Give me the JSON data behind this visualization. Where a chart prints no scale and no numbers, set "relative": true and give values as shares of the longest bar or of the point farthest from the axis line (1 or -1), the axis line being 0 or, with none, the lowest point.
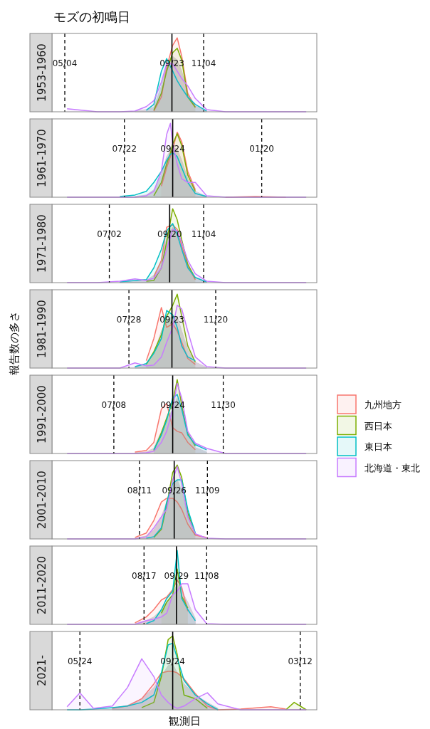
{
  "chart_data": [
    {
      "type": "area",
      "title": "モズの初鳴日",
      "subtitle": "1953-1960",
      "relative": true,
      "xlim": [
        "2000-04-17",
        "2001-04-03"
      ],
      "xticks": [
        {
          "value": "2000-05-04",
          "label": "05/04"
        },
        {
          "value": "2000-09-23",
          "label": "09/23"
        },
        {
          "value": "2000-11-04",
          "label": "11/04"
        }
      ],
      "x": [
        "2000-05-07",
        "2000-06-16",
        "2000-07-16",
        "2000-08-05",
        "2000-08-20",
        "2000-08-30",
        "2000-09-09",
        "2000-09-16",
        "2000-09-24",
        "2000-09-30",
        "2000-10-06",
        "2000-10-14",
        "2000-10-24",
        "2000-11-08",
        "2000-12-03",
        "2001-01-12",
        "2001-02-21",
        "2001-03-20"
      ],
      "series": [
        {
          "color": "#d4d4d4",
          "values": [
            null,
            null,
            null,
            0.01,
            0.03,
            0.06,
            0.35,
            0.65,
            0.75,
            0.7,
            0.55,
            0.25,
            0.08,
            0.01,
            null,
            null,
            null,
            null
          ]
        },
        {
          "color": "#f8766d",
          "values": [
            null,
            null,
            null,
            null,
            null,
            0.01,
            0.2,
            0.6,
            0.9,
            1.0,
            0.75,
            0.25,
            0.06,
            null,
            null,
            null,
            null,
            null
          ]
        },
        {
          "color": "#7cae00",
          "values": [
            null,
            null,
            null,
            null,
            null,
            0.02,
            0.25,
            0.55,
            0.8,
            0.86,
            0.7,
            0.2,
            0.06,
            null,
            null,
            null,
            null,
            null
          ]
        },
        {
          "color": "#00bfc4",
          "values": [
            null,
            null,
            null,
            null,
            0.02,
            0.1,
            0.55,
            0.72,
            0.55,
            0.42,
            0.32,
            0.2,
            0.1,
            0.01,
            null,
            null,
            null,
            null
          ]
        },
        {
          "color": "#c77cff",
          "values": [
            0.04,
            0,
            0,
            0.01,
            0.07,
            0.15,
            0.4,
            0.65,
            0.65,
            0.55,
            0.45,
            0.35,
            0.18,
            0.03,
            0,
            0,
            0,
            0
          ]
        }
      ],
      "ref_lines": [
        {
          "axis": "x",
          "value": "2000-05-04",
          "line_style": "dashed"
        },
        {
          "axis": "x",
          "value": "2000-09-23",
          "line_style": "solid"
        },
        {
          "axis": "x",
          "value": "2000-11-04",
          "line_style": "dashed"
        }
      ]
    },
    {
      "type": "area",
      "subtitle": "1961-1970",
      "relative": true,
      "xlim": [
        "2000-04-17",
        "2001-04-03"
      ],
      "xticks": [
        {
          "value": "2000-07-22",
          "label": "07/22"
        },
        {
          "value": "2000-09-24",
          "label": "09/24"
        },
        {
          "value": "2001-01-20",
          "label": "01/20"
        }
      ],
      "x": [
        "2000-05-07",
        "2000-06-16",
        "2000-07-16",
        "2000-08-05",
        "2000-08-20",
        "2000-08-30",
        "2000-09-09",
        "2000-09-16",
        "2000-09-21",
        "2000-09-24",
        "2000-09-30",
        "2000-10-06",
        "2000-10-14",
        "2000-10-24",
        "2000-11-08",
        "2000-12-03",
        "2001-01-12",
        "2001-02-21",
        "2001-03-20"
      ],
      "series": [
        {
          "color": "#d4d4d4",
          "values": [
            null,
            null,
            null,
            0.01,
            0.03,
            0.1,
            0.3,
            0.55,
            0.63,
            0.68,
            0.65,
            0.5,
            0.25,
            0.08,
            0.01,
            null,
            null,
            null,
            null
          ]
        },
        {
          "color": "#f8766d",
          "values": [
            null,
            null,
            null,
            null,
            null,
            null,
            0.15,
            0.4,
            0.55,
            0.65,
            0.88,
            0.75,
            0.35,
            0.1,
            null,
            0,
            0.01,
            0,
            null
          ]
        },
        {
          "color": "#7cae00",
          "values": [
            null,
            null,
            null,
            null,
            null,
            0.02,
            0.2,
            0.45,
            0.6,
            0.72,
            0.86,
            0.7,
            0.3,
            0.08,
            null,
            null,
            null,
            null,
            null
          ]
        },
        {
          "color": "#00bfc4",
          "values": [
            null,
            null,
            0.01,
            0.03,
            0.08,
            0.2,
            0.35,
            0.5,
            0.58,
            0.6,
            0.55,
            0.4,
            0.2,
            0.05,
            0.01,
            null,
            null,
            null,
            null
          ]
        },
        {
          "color": "#c77cff",
          "values": [
            0,
            0,
            0,
            0,
            0.02,
            0.08,
            0.35,
            0.85,
            1.0,
            0.72,
            0.45,
            0.25,
            0.2,
            0.2,
            0.02,
            0,
            0,
            0,
            0
          ]
        }
      ],
      "ref_lines": [
        {
          "axis": "x",
          "value": "2000-07-22",
          "line_style": "dashed"
        },
        {
          "axis": "x",
          "value": "2000-09-24",
          "line_style": "solid"
        },
        {
          "axis": "x",
          "value": "2001-01-20",
          "line_style": "dashed"
        }
      ]
    },
    {
      "type": "area",
      "subtitle": "1971-1980",
      "relative": true,
      "xlim": [
        "2000-04-17",
        "2001-04-03"
      ],
      "xticks": [
        {
          "value": "2000-07-02",
          "label": "07/02"
        },
        {
          "value": "2000-09-20",
          "label": "09/20"
        },
        {
          "value": "2000-11-04",
          "label": "11/04"
        }
      ],
      "x": [
        "2000-05-07",
        "2000-06-16",
        "2000-07-16",
        "2000-08-05",
        "2000-08-20",
        "2000-08-30",
        "2000-09-09",
        "2000-09-16",
        "2000-09-24",
        "2000-09-30",
        "2000-10-06",
        "2000-10-14",
        "2000-10-24",
        "2000-11-08",
        "2000-12-03",
        "2001-01-12",
        "2001-02-21",
        "2001-03-20"
      ],
      "series": [
        {
          "color": "#d4d4d4",
          "values": [
            null,
            null,
            0.01,
            0.02,
            0.03,
            0.1,
            0.3,
            0.6,
            0.75,
            0.7,
            0.5,
            0.22,
            0.07,
            0.01,
            null,
            null,
            null,
            null
          ]
        },
        {
          "color": "#f8766d",
          "values": [
            null,
            null,
            null,
            null,
            null,
            0.08,
            0.3,
            0.75,
            0.78,
            0.72,
            0.5,
            0.22,
            0.04,
            null,
            null,
            null,
            null,
            null
          ]
        },
        {
          "color": "#7cae00",
          "values": [
            null,
            null,
            null,
            null,
            0.02,
            0.03,
            0.2,
            0.55,
            1.0,
            0.85,
            0.58,
            0.25,
            0.06,
            null,
            null,
            null,
            null,
            null
          ]
        },
        {
          "color": "#00bfc4",
          "values": [
            null,
            null,
            0.01,
            0.03,
            0.04,
            0.2,
            0.45,
            0.7,
            0.8,
            0.65,
            0.45,
            0.2,
            0.07,
            0.01,
            null,
            null,
            null,
            null
          ]
        },
        {
          "color": "#c77cff",
          "values": [
            0,
            0,
            0.02,
            0.05,
            0.03,
            0.06,
            0.2,
            0.45,
            0.72,
            0.7,
            0.55,
            0.3,
            0.12,
            0.02,
            0,
            0,
            0,
            0
          ]
        }
      ],
      "ref_lines": [
        {
          "axis": "x",
          "value": "2000-07-02",
          "line_style": "dashed"
        },
        {
          "axis": "x",
          "value": "2000-09-20",
          "line_style": "solid"
        },
        {
          "axis": "x",
          "value": "2000-11-04",
          "line_style": "dashed"
        }
      ]
    },
    {
      "type": "area",
      "subtitle": "1981-1990",
      "ylabel": "報告数の多さ",
      "relative": true,
      "xlim": [
        "2000-04-17",
        "2001-04-03"
      ],
      "xticks": [
        {
          "value": "2000-07-28",
          "label": "07/28"
        },
        {
          "value": "2000-09-23",
          "label": "09/23"
        },
        {
          "value": "2000-11-20",
          "label": "11/20"
        }
      ],
      "x": [
        "2000-05-07",
        "2000-06-16",
        "2000-07-16",
        "2000-08-05",
        "2000-08-20",
        "2000-08-30",
        "2000-09-09",
        "2000-09-16",
        "2000-09-24",
        "2000-09-30",
        "2000-10-06",
        "2000-10-14",
        "2000-10-24",
        "2000-11-08",
        "2000-12-03",
        "2001-01-12",
        "2001-02-21",
        "2001-03-20"
      ],
      "series": [
        {
          "color": "#d4d4d4",
          "values": [
            null,
            null,
            null,
            0.02,
            0.06,
            0.2,
            0.5,
            0.65,
            0.7,
            0.7,
            0.5,
            0.25,
            0.08,
            0.01,
            null,
            null,
            null,
            null
          ]
        },
        {
          "color": "#f8766d",
          "values": [
            null,
            null,
            null,
            null,
            0.1,
            0.4,
            0.82,
            0.55,
            0.6,
            0.5,
            0.35,
            0.13,
            0.05,
            null,
            null,
            null,
            null,
            null
          ]
        },
        {
          "color": "#7cae00",
          "values": [
            null,
            null,
            null,
            null,
            0.05,
            0.22,
            0.45,
            0.7,
            0.85,
            1.0,
            0.7,
            0.3,
            0.08,
            null,
            null,
            null,
            null,
            null
          ]
        },
        {
          "color": "#00bfc4",
          "values": [
            null,
            null,
            null,
            0.02,
            0.06,
            0.2,
            0.4,
            0.78,
            0.72,
            0.55,
            0.3,
            0.15,
            0.1,
            null,
            null,
            null,
            null,
            null
          ]
        },
        {
          "color": "#c77cff",
          "values": [
            0,
            0,
            0,
            0.07,
            0.03,
            0.04,
            0.15,
            0.35,
            0.55,
            0.85,
            0.8,
            0.5,
            0.15,
            0.02,
            0,
            0,
            0,
            0
          ]
        }
      ],
      "ref_lines": [
        {
          "axis": "x",
          "value": "2000-07-28",
          "line_style": "dashed"
        },
        {
          "axis": "x",
          "value": "2000-09-23",
          "line_style": "solid"
        },
        {
          "axis": "x",
          "value": "2000-11-20",
          "line_style": "dashed"
        }
      ]
    },
    {
      "type": "area",
      "subtitle": "1991-2000",
      "relative": true,
      "legend": "right",
      "xlim": [
        "2000-04-17",
        "2001-04-03"
      ],
      "xticks": [
        {
          "value": "2000-07-08",
          "label": "07/08"
        },
        {
          "value": "2000-09-24",
          "label": "09/24"
        },
        {
          "value": "2000-11-30",
          "label": "11/30"
        }
      ],
      "x": [
        "2000-05-07",
        "2000-06-16",
        "2000-07-16",
        "2000-08-05",
        "2000-08-20",
        "2000-08-30",
        "2000-09-09",
        "2000-09-16",
        "2000-09-24",
        "2000-09-30",
        "2000-10-06",
        "2000-10-14",
        "2000-10-24",
        "2000-11-08",
        "2000-12-03",
        "2001-01-12",
        "2001-02-21",
        "2001-03-20"
      ],
      "series": [
        {
          "color": "#d4d4d4",
          "values": [
            null,
            null,
            null,
            0.01,
            0.02,
            0.07,
            0.3,
            0.45,
            0.6,
            0.75,
            0.6,
            0.25,
            0.08,
            0.02,
            null,
            null,
            null,
            null
          ]
        },
        {
          "name": "九州地方",
          "color": "#f8766d",
          "values": [
            null,
            null,
            null,
            0.02,
            0.04,
            0.15,
            0.6,
            0.68,
            0.35,
            0.3,
            0.28,
            0.15,
            0.05,
            null,
            null,
            null,
            null,
            null
          ]
        },
        {
          "name": "西日本",
          "color": "#7cae00",
          "values": [
            null,
            null,
            null,
            null,
            null,
            0.04,
            0.28,
            0.48,
            0.7,
            1.0,
            0.65,
            0.27,
            0.1,
            null,
            null,
            null,
            null,
            null
          ]
        },
        {
          "name": "東日本",
          "color": "#00bfc4",
          "values": [
            null,
            null,
            null,
            null,
            null,
            0.05,
            0.25,
            0.45,
            0.75,
            0.8,
            0.6,
            0.25,
            0.12,
            0.05,
            null,
            null,
            null,
            null
          ]
        },
        {
          "name": "北海道・東北",
          "color": "#c77cff",
          "values": [
            0,
            0,
            0,
            0,
            0.01,
            0.03,
            0.15,
            0.3,
            0.6,
            0.95,
            0.75,
            0.3,
            0.14,
            0.07,
            0,
            0,
            0,
            0
          ]
        }
      ],
      "ref_lines": [
        {
          "axis": "x",
          "value": "2000-07-08",
          "line_style": "dashed"
        },
        {
          "axis": "x",
          "value": "2000-09-24",
          "line_style": "solid"
        },
        {
          "axis": "x",
          "value": "2000-11-30",
          "line_style": "dashed"
        }
      ]
    },
    {
      "type": "area",
      "subtitle": "2001-2010",
      "relative": true,
      "xlim": [
        "2000-04-17",
        "2001-04-03"
      ],
      "xticks": [
        {
          "value": "2000-08-11",
          "label": "08/11"
        },
        {
          "value": "2000-09-26",
          "label": "09/26"
        },
        {
          "value": "2000-11-09",
          "label": "11/09"
        }
      ],
      "x": [
        "2000-05-07",
        "2000-06-16",
        "2000-07-16",
        "2000-08-05",
        "2000-08-20",
        "2000-08-30",
        "2000-09-09",
        "2000-09-16",
        "2000-09-24",
        "2000-09-30",
        "2000-10-06",
        "2000-10-14",
        "2000-10-24",
        "2000-11-08",
        "2000-12-03",
        "2001-01-12",
        "2001-02-21",
        "2001-03-20"
      ],
      "series": [
        {
          "color": "#d4d4d4",
          "values": [
            null,
            null,
            null,
            0.01,
            0.04,
            0.12,
            0.3,
            0.5,
            0.75,
            0.8,
            0.65,
            0.3,
            0.07,
            0.01,
            null,
            null,
            null,
            null
          ]
        },
        {
          "color": "#f8766d",
          "values": [
            null,
            null,
            null,
            0.02,
            0.08,
            0.25,
            0.5,
            0.55,
            0.55,
            0.5,
            0.4,
            0.2,
            0.05,
            0.02,
            null,
            null,
            null,
            null
          ]
        },
        {
          "color": "#7cae00",
          "values": [
            null,
            null,
            null,
            null,
            null,
            0.02,
            0.13,
            0.45,
            0.9,
            1.0,
            0.83,
            0.35,
            0.06,
            null,
            null,
            null,
            null,
            null
          ]
        },
        {
          "color": "#00bfc4",
          "values": [
            null,
            null,
            null,
            null,
            0.01,
            0.03,
            0.15,
            0.5,
            0.75,
            0.8,
            0.8,
            0.4,
            0.08,
            null,
            null,
            null,
            null,
            null
          ]
        },
        {
          "color": "#c77cff",
          "values": [
            0,
            0,
            0,
            0,
            0.03,
            0.15,
            0.3,
            0.4,
            0.8,
            0.98,
            0.75,
            0.3,
            0.07,
            0.01,
            0,
            0,
            0,
            0
          ]
        }
      ],
      "ref_lines": [
        {
          "axis": "x",
          "value": "2000-08-11",
          "line_style": "dashed"
        },
        {
          "axis": "x",
          "value": "2000-09-26",
          "line_style": "solid"
        },
        {
          "axis": "x",
          "value": "2000-11-09",
          "line_style": "dashed"
        }
      ]
    },
    {
      "type": "area",
      "subtitle": "2011-2020",
      "relative": true,
      "xlim": [
        "2000-04-17",
        "2001-04-03"
      ],
      "xticks": [
        {
          "value": "2000-08-17",
          "label": "08/17"
        },
        {
          "value": "2000-09-29",
          "label": "09/29"
        },
        {
          "value": "2000-11-08",
          "label": "11/08"
        }
      ],
      "x": [
        "2000-05-07",
        "2000-06-16",
        "2000-07-16",
        "2000-08-05",
        "2000-08-20",
        "2000-08-30",
        "2000-09-09",
        "2000-09-16",
        "2000-09-24",
        "2000-09-30",
        "2000-10-06",
        "2000-10-14",
        "2000-10-24",
        "2000-11-08",
        "2000-12-03",
        "2001-01-12",
        "2001-02-21",
        "2001-03-20"
      ],
      "series": [
        {
          "color": "#d4d4d4",
          "values": [
            null,
            null,
            null,
            0.01,
            0.05,
            0.1,
            0.2,
            0.3,
            0.4,
            0.55,
            0.45,
            0.3,
            0.08,
            null,
            null,
            null,
            null,
            null
          ]
        },
        {
          "color": "#f8766d",
          "values": [
            null,
            null,
            null,
            0.02,
            0.1,
            0.2,
            0.33,
            0.37,
            0.47,
            0.6,
            0.5,
            0.18,
            null,
            null,
            null,
            null,
            null,
            null
          ]
        },
        {
          "color": "#7cae00",
          "values": [
            null,
            null,
            null,
            null,
            null,
            null,
            0.15,
            0.3,
            0.4,
            0.75,
            0.38,
            0.22,
            null,
            null,
            null,
            null,
            null,
            null
          ]
        },
        {
          "color": "#00bfc4",
          "values": [
            null,
            null,
            null,
            null,
            0.01,
            0.05,
            0.2,
            0.35,
            0.45,
            1.0,
            0.35,
            0.2,
            0.05,
            null,
            null,
            null,
            null,
            null
          ]
        },
        {
          "color": "#c77cff",
          "values": [
            0,
            0,
            0,
            0,
            0.05,
            0.07,
            0.1,
            0.15,
            0.4,
            0.45,
            0.55,
            0.55,
            0.2,
            0.01,
            0,
            0,
            0,
            0
          ]
        }
      ],
      "ref_lines": [
        {
          "axis": "x",
          "value": "2000-08-17",
          "line_style": "dashed"
        },
        {
          "axis": "x",
          "value": "2000-09-29",
          "line_style": "solid"
        },
        {
          "axis": "x",
          "value": "2000-11-08",
          "line_style": "dashed"
        }
      ]
    },
    {
      "type": "area",
      "subtitle": "2021-",
      "xlabel": "観測日",
      "relative": true,
      "xlim": [
        "2000-04-17",
        "2001-04-03"
      ],
      "xticks": [
        {
          "value": "2000-05-24",
          "label": "05/24"
        },
        {
          "value": "2000-09-24",
          "label": "09/24"
        },
        {
          "value": "2001-03-12",
          "label": "03/12"
        }
      ],
      "x": [
        "2000-05-07",
        "2000-05-24",
        "2000-06-11",
        "2000-07-06",
        "2000-07-26",
        "2000-08-14",
        "2000-08-30",
        "2000-09-09",
        "2000-09-18",
        "2000-09-24",
        "2000-09-30",
        "2000-10-09",
        "2000-10-24",
        "2000-11-09",
        "2000-11-23",
        "2000-12-23",
        "2001-02-01",
        "2001-02-21",
        "2001-03-04",
        "2001-03-20"
      ],
      "series": [
        {
          "color": "#d4d4d4",
          "values": [
            null,
            null,
            null,
            0.02,
            0.06,
            0.15,
            0.3,
            0.45,
            0.6,
            0.62,
            0.5,
            0.35,
            0.2,
            0.1,
            0.02,
            null,
            null,
            null,
            null,
            null
          ]
        },
        {
          "color": "#f8766d",
          "values": [
            null,
            null,
            null,
            0.02,
            0.05,
            0.15,
            0.35,
            0.5,
            0.52,
            0.52,
            0.5,
            0.42,
            0.22,
            0.05,
            0,
            0.01,
            0.04,
            0.01,
            null,
            null
          ]
        },
        {
          "color": "#7cae00",
          "values": [
            null,
            null,
            null,
            null,
            null,
            0.03,
            0.1,
            0.45,
            0.95,
            1.0,
            0.75,
            0.2,
            0.15,
            0.02,
            null,
            null,
            null,
            0,
            0.1,
            0
          ]
        },
        {
          "color": "#00bfc4",
          "values": [
            0,
            0,
            0.01,
            0.03,
            0.05,
            0.1,
            0.2,
            0.5,
            0.88,
            0.9,
            0.7,
            0.4,
            0.2,
            0.08,
            0,
            null,
            null,
            null,
            null,
            null
          ]
        },
        {
          "color": "#c77cff",
          "values": [
            0.04,
            0.23,
            0.02,
            0.05,
            0.3,
            0.69,
            0.45,
            0.2,
            0.1,
            0.05,
            0.02,
            0.05,
            0.15,
            0.23,
            0.08,
            0,
            0,
            0,
            0,
            0
          ]
        }
      ],
      "ref_lines": [
        {
          "axis": "x",
          "value": "2000-05-24",
          "line_style": "dashed"
        },
        {
          "axis": "x",
          "value": "2000-09-24",
          "line_style": "solid"
        },
        {
          "axis": "x",
          "value": "2001-03-12",
          "line_style": "dashed"
        }
      ]
    }
  ]
}
